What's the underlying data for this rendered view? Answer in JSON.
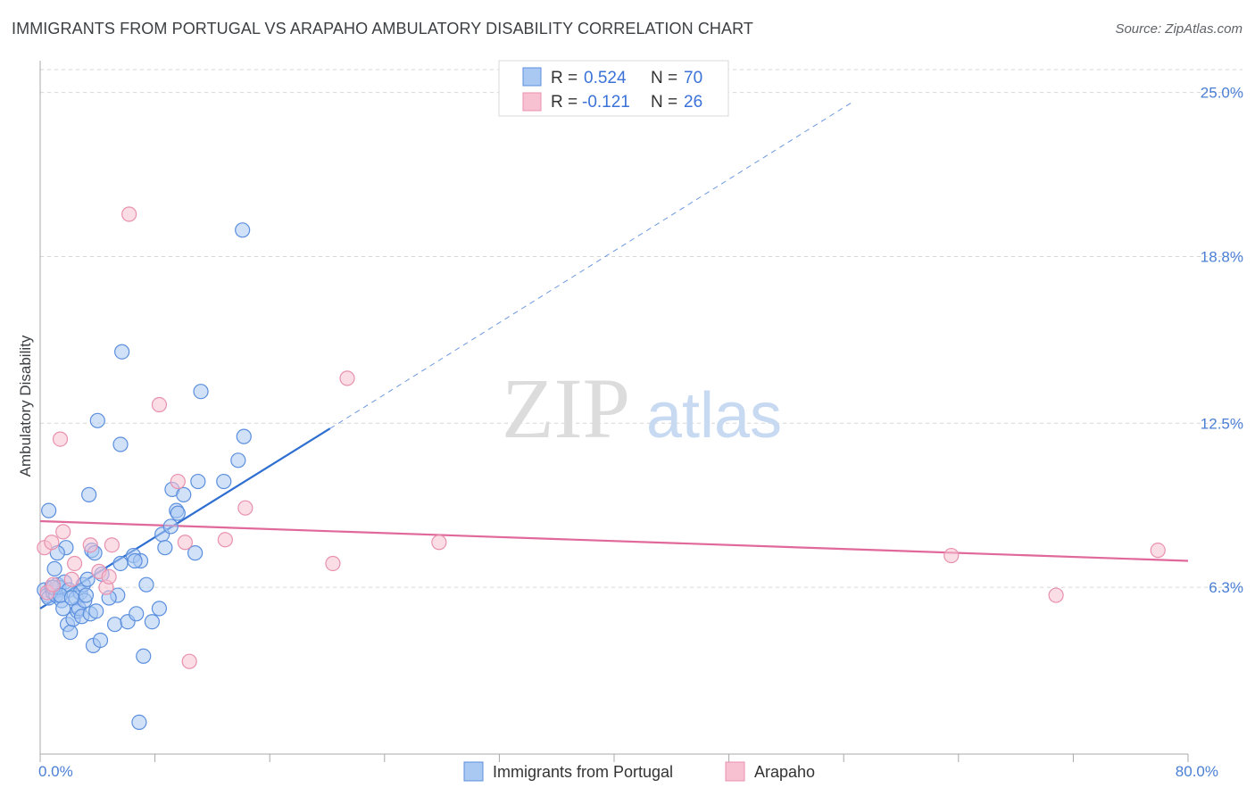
{
  "title": "IMMIGRANTS FROM PORTUGAL VS ARAPAHO AMBULATORY DISABILITY CORRELATION CHART",
  "source": "Source: ZipAtlas.com",
  "watermark": {
    "zip": "ZIP",
    "atlas": "atlas"
  },
  "colors": {
    "blue_fill": "#a9c8f2",
    "blue_stroke": "#5b8fde",
    "blue_line": "#2f6fd1",
    "pink_fill": "#f7c1d2",
    "pink_stroke": "#e891ae",
    "pink_line": "#e0689a",
    "tick_text": "#4a7fd4",
    "grid": "#d6d6d6",
    "axis": "#9e9e9e"
  },
  "stats": [
    {
      "r_label": "R = ",
      "r_value": "0.524",
      "n_label": "N = ",
      "n_value": "70"
    },
    {
      "r_label": "R = ",
      "r_value": "-0.121",
      "n_label": "N = ",
      "n_value": "26"
    }
  ],
  "chart_data": {
    "type": "scatter",
    "title": "IMMIGRANTS FROM PORTUGAL VS ARAPAHO AMBULATORY DISABILITY CORRELATION CHART",
    "xlabel": "",
    "ylabel": "Ambulatory Disability",
    "xlim": [
      0,
      80
    ],
    "ylim": [
      0,
      26.2
    ],
    "x_tick_labels": [
      {
        "value": 0,
        "label": "0.0%"
      },
      {
        "value": 80,
        "label": "80.0%"
      }
    ],
    "x_minor_ticks": [
      0,
      8,
      16,
      24,
      32,
      40,
      48,
      56,
      64,
      72,
      80
    ],
    "y_ticks": [
      {
        "value": 6.3,
        "label": "6.3%"
      },
      {
        "value": 12.5,
        "label": "12.5%"
      },
      {
        "value": 18.8,
        "label": "18.8%"
      },
      {
        "value": 25.0,
        "label": "25.0%"
      }
    ],
    "legend_placement": "bottom-center",
    "series": [
      {
        "name": "Immigrants from Portugal",
        "color": "blue",
        "trend": {
          "x0": 0,
          "y0": 5.5,
          "x1": 20.2,
          "y1": 12.3,
          "dashed_to_x": 56.5,
          "dashed_to_y": 24.6
        },
        "points": [
          [
            0.3,
            6.2
          ],
          [
            0.5,
            6.0
          ],
          [
            0.6,
            5.9
          ],
          [
            0.8,
            6.3
          ],
          [
            0.9,
            6.1
          ],
          [
            1.0,
            7.0
          ],
          [
            1.1,
            6.0
          ],
          [
            1.2,
            6.4
          ],
          [
            1.3,
            6.3
          ],
          [
            1.5,
            5.8
          ],
          [
            1.6,
            5.5
          ],
          [
            1.7,
            6.5
          ],
          [
            1.8,
            7.8
          ],
          [
            1.9,
            4.9
          ],
          [
            2.0,
            6.2
          ],
          [
            2.1,
            4.6
          ],
          [
            2.3,
            5.1
          ],
          [
            2.5,
            5.9
          ],
          [
            2.6,
            5.4
          ],
          [
            2.7,
            5.5
          ],
          [
            2.8,
            6.1
          ],
          [
            2.9,
            5.2
          ],
          [
            3.0,
            6.4
          ],
          [
            3.1,
            5.8
          ],
          [
            3.2,
            6.0
          ],
          [
            3.3,
            6.6
          ],
          [
            3.5,
            5.3
          ],
          [
            3.6,
            7.7
          ],
          [
            3.7,
            4.1
          ],
          [
            3.8,
            7.6
          ],
          [
            4.2,
            4.3
          ],
          [
            4.3,
            6.8
          ],
          [
            5.2,
            4.9
          ],
          [
            5.4,
            6.0
          ],
          [
            5.6,
            7.2
          ],
          [
            6.1,
            5.0
          ],
          [
            6.5,
            7.5
          ],
          [
            6.7,
            5.3
          ],
          [
            7.0,
            7.3
          ],
          [
            7.2,
            3.7
          ],
          [
            7.4,
            6.4
          ],
          [
            7.8,
            5.0
          ],
          [
            8.5,
            8.3
          ],
          [
            8.7,
            7.8
          ],
          [
            9.2,
            10.0
          ],
          [
            9.5,
            9.2
          ],
          [
            10.0,
            9.8
          ],
          [
            10.8,
            7.6
          ],
          [
            11.0,
            10.3
          ],
          [
            12.8,
            10.3
          ],
          [
            13.8,
            11.1
          ],
          [
            14.2,
            12.0
          ],
          [
            0.6,
            9.2
          ],
          [
            3.4,
            9.8
          ],
          [
            4.0,
            12.6
          ],
          [
            5.6,
            11.7
          ],
          [
            5.7,
            15.2
          ],
          [
            11.2,
            13.7
          ],
          [
            14.1,
            19.8
          ],
          [
            0.9,
            6.3
          ],
          [
            1.4,
            6.0
          ],
          [
            2.2,
            5.9
          ],
          [
            3.9,
            5.4
          ],
          [
            4.8,
            5.9
          ],
          [
            6.6,
            7.3
          ],
          [
            8.3,
            5.5
          ],
          [
            9.1,
            8.6
          ],
          [
            9.6,
            9.1
          ],
          [
            1.2,
            7.6
          ],
          [
            6.9,
            1.2
          ]
        ]
      },
      {
        "name": "Arapaho",
        "color": "pink",
        "trend": {
          "x0": 0,
          "y0": 8.8,
          "x1": 80,
          "y1": 7.3
        },
        "points": [
          [
            0.3,
            7.8
          ],
          [
            0.5,
            6.1
          ],
          [
            0.8,
            8.0
          ],
          [
            1.4,
            11.9
          ],
          [
            1.6,
            8.4
          ],
          [
            2.2,
            6.6
          ],
          [
            2.4,
            7.2
          ],
          [
            3.5,
            7.9
          ],
          [
            4.1,
            6.9
          ],
          [
            4.6,
            6.3
          ],
          [
            4.8,
            6.7
          ],
          [
            5.0,
            7.9
          ],
          [
            6.2,
            20.4
          ],
          [
            8.3,
            13.2
          ],
          [
            9.6,
            10.3
          ],
          [
            10.1,
            8.0
          ],
          [
            10.4,
            3.5
          ],
          [
            14.3,
            9.3
          ],
          [
            20.4,
            7.2
          ],
          [
            21.4,
            14.2
          ],
          [
            27.8,
            8.0
          ],
          [
            63.5,
            7.5
          ],
          [
            70.8,
            6.0
          ],
          [
            77.9,
            7.7
          ],
          [
            12.9,
            8.1
          ],
          [
            0.9,
            6.4
          ]
        ]
      }
    ]
  }
}
